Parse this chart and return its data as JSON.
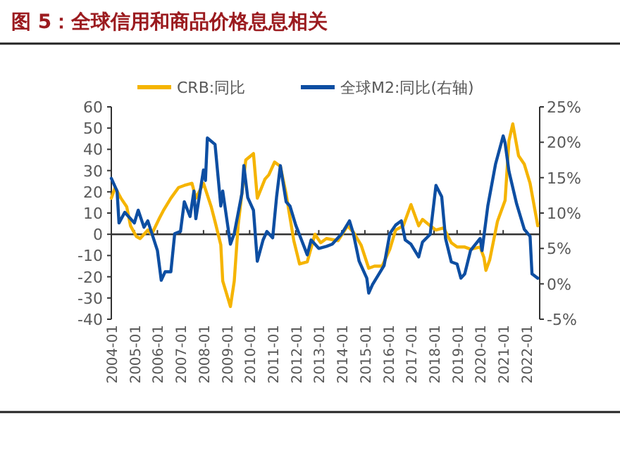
{
  "chart_data": {
    "type": "line",
    "title": "图 5：全球信用和商品价格息息相关",
    "legend": "top",
    "marker": "none",
    "line_style": "solid",
    "xlim": [
      "2004-01",
      "2022-08"
    ],
    "xticks": [
      "2004-01",
      "2005-01",
      "2006-01",
      "2007-01",
      "2008-01",
      "2009-01",
      "2010-01",
      "2011-01",
      "2012-01",
      "2013-01",
      "2014-01",
      "2015-01",
      "2016-01",
      "2017-01",
      "2018-01",
      "2019-01",
      "2020-01",
      "2021-01",
      "2022-01"
    ],
    "ylim": [
      -40,
      60
    ],
    "yticks": [
      -40,
      -30,
      -20,
      -10,
      0,
      10,
      20,
      30,
      40,
      50,
      60
    ],
    "y2lim": [
      -5,
      25
    ],
    "y2ticks": [
      {
        "value": -5,
        "label": "-5%"
      },
      {
        "value": 0,
        "label": "0%"
      },
      {
        "value": 5,
        "label": "5%"
      },
      {
        "value": 10,
        "label": "10%"
      },
      {
        "value": 15,
        "label": "15%"
      },
      {
        "value": 20,
        "label": "20%"
      },
      {
        "value": 25,
        "label": "25%"
      }
    ],
    "series": [
      {
        "name": "CRB:同比",
        "color": "#F5B400",
        "x": [
          "2004-01",
          "2004-03",
          "2004-06",
          "2004-09",
          "2004-11",
          "2005-02",
          "2005-04",
          "2005-08",
          "2005-10",
          "2006-02",
          "2006-04",
          "2006-08",
          "2006-12",
          "2007-03",
          "2007-07",
          "2007-09",
          "2008-01",
          "2008-05",
          "2008-07",
          "2008-10",
          "2008-11",
          "2009-03",
          "2009-05",
          "2009-07",
          "2009-11",
          "2010-03",
          "2010-05",
          "2010-09",
          "2010-11",
          "2011-02",
          "2011-05",
          "2011-08",
          "2011-12",
          "2012-03",
          "2012-07",
          "2012-11",
          "2013-02",
          "2013-05",
          "2013-11",
          "2014-04",
          "2014-07",
          "2014-11",
          "2015-03",
          "2015-06",
          "2015-10",
          "2016-02",
          "2016-05",
          "2016-09",
          "2017-01",
          "2017-05",
          "2017-07",
          "2017-11",
          "2018-02",
          "2018-06",
          "2018-10",
          "2019-01",
          "2019-05",
          "2019-08",
          "2020-01",
          "2020-03",
          "2020-04",
          "2020-06",
          "2020-10",
          "2021-02",
          "2021-04",
          "2021-06",
          "2021-09",
          "2021-12",
          "2022-03",
          "2022-07"
        ],
        "values": [
          17,
          22,
          17,
          13,
          4,
          -1,
          -2,
          2,
          0,
          7.5,
          11,
          17,
          22,
          23,
          24,
          17,
          24,
          13,
          6,
          -5,
          -22,
          -34,
          -22,
          4,
          35,
          38,
          17,
          26,
          28,
          34,
          32,
          19,
          -3,
          -14,
          -13,
          0,
          -4,
          -2,
          -3,
          4,
          1,
          -5,
          -16,
          -15,
          -15,
          -7,
          2,
          4,
          14,
          4,
          7,
          4,
          2,
          3,
          -4,
          -6,
          -6,
          -7,
          -6,
          -11,
          -17,
          -12,
          6,
          16,
          44,
          52,
          37,
          33,
          24,
          4
        ]
      },
      {
        "name": "全球M2:同比(右轴)",
        "color": "#0D4EA2",
        "axis": "y2",
        "x": [
          "2004-01",
          "2004-04",
          "2004-05",
          "2004-08",
          "2005-01",
          "2005-03",
          "2005-06",
          "2005-08",
          "2006-01",
          "2006-03",
          "2006-05",
          "2006-08",
          "2006-10",
          "2007-01",
          "2007-03",
          "2007-06",
          "2007-08",
          "2007-09",
          "2008-01",
          "2008-02",
          "2008-03",
          "2008-07",
          "2008-10",
          "2008-11",
          "2009-03",
          "2009-05",
          "2009-09",
          "2009-10",
          "2009-12",
          "2010-03",
          "2010-05",
          "2010-08",
          "2010-10",
          "2011-01",
          "2011-03",
          "2011-05",
          "2011-08",
          "2011-10",
          "2012-01",
          "2012-04",
          "2012-07",
          "2012-09",
          "2013-01",
          "2013-05",
          "2013-08",
          "2014-01",
          "2014-05",
          "2014-07",
          "2014-10",
          "2015-02",
          "2015-03",
          "2015-05",
          "2015-09",
          "2015-11",
          "2016-02",
          "2016-05",
          "2016-08",
          "2016-10",
          "2017-01",
          "2017-05",
          "2017-07",
          "2017-11",
          "2018-02",
          "2018-05",
          "2018-07",
          "2018-10",
          "2019-01",
          "2019-03",
          "2019-05",
          "2019-08",
          "2019-10",
          "2020-01",
          "2020-02",
          "2020-05",
          "2020-09",
          "2021-01",
          "2021-02",
          "2021-04",
          "2021-08",
          "2021-12",
          "2022-03",
          "2022-04",
          "2022-07"
        ],
        "values": [
          14.9,
          13.1,
          8.6,
          10.1,
          8.6,
          10.4,
          8.0,
          8.9,
          4.7,
          0.5,
          1.7,
          1.7,
          7.1,
          7.4,
          11.6,
          9.5,
          13.1,
          9.2,
          16.1,
          14.6,
          20.6,
          19.7,
          11.0,
          13.1,
          5.6,
          7.1,
          12.8,
          16.7,
          12.2,
          10.4,
          3.2,
          6.2,
          7.4,
          6.5,
          12.2,
          16.7,
          11.6,
          11.0,
          8.3,
          6.2,
          4.1,
          6.2,
          5.0,
          5.3,
          5.6,
          7.1,
          8.9,
          7.1,
          3.2,
          0.8,
          -1.3,
          -0.1,
          1.7,
          2.6,
          7.1,
          8.3,
          8.9,
          6.2,
          5.6,
          3.8,
          5.9,
          7.0,
          13.9,
          12.3,
          6.4,
          3.1,
          2.8,
          0.8,
          1.4,
          4.7,
          5.4,
          6.4,
          4.7,
          11.0,
          16.9,
          20.9,
          19.9,
          15.9,
          11.3,
          7.7,
          6.7,
          1.4,
          0.8
        ]
      }
    ]
  }
}
